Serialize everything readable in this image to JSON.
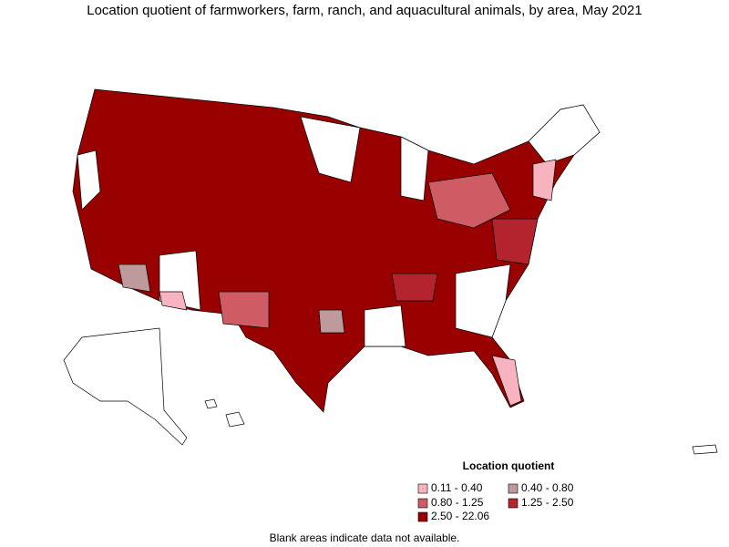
{
  "title": "Location quotient of farmworkers, farm, ranch, and aquacultural animals, by area, May 2021",
  "legend": {
    "title": "Location quotient",
    "items": [
      {
        "label": "0.11 - 0.40",
        "color": "#f7b3bf"
      },
      {
        "label": "0.40 - 0.80",
        "color": "#bf9a9c"
      },
      {
        "label": "0.80 - 1.25",
        "color": "#cf5c64"
      },
      {
        "label": "1.25 - 2.50",
        "color": "#b3242e"
      },
      {
        "label": "2.50 - 22.06",
        "color": "#990000"
      }
    ]
  },
  "footnote": "Blank areas indicate data not available."
}
